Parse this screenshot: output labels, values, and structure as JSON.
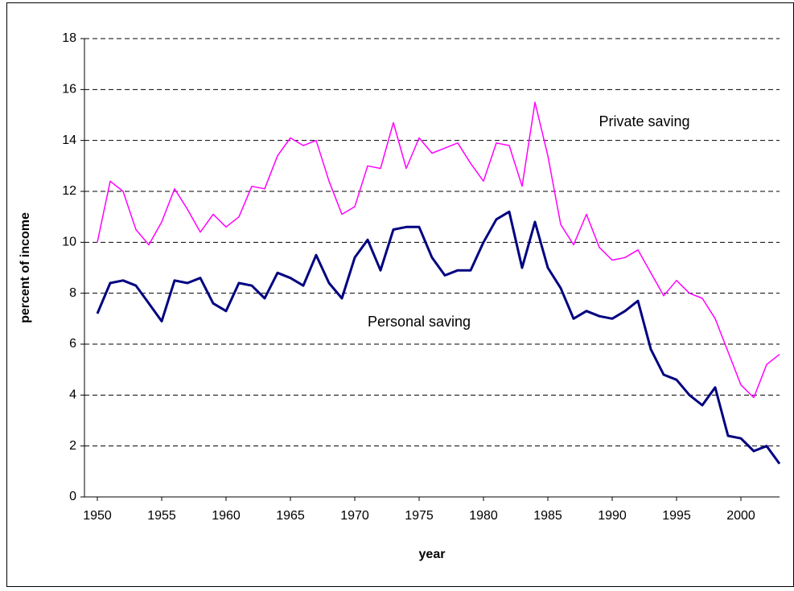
{
  "chart_data": {
    "type": "line",
    "x": [
      1950,
      1951,
      1952,
      1953,
      1954,
      1955,
      1956,
      1957,
      1958,
      1959,
      1960,
      1961,
      1962,
      1963,
      1964,
      1965,
      1966,
      1967,
      1968,
      1969,
      1970,
      1971,
      1972,
      1973,
      1974,
      1975,
      1976,
      1977,
      1978,
      1979,
      1980,
      1981,
      1982,
      1983,
      1984,
      1985,
      1986,
      1987,
      1988,
      1989,
      1990,
      1991,
      1992,
      1993,
      1994,
      1995,
      1996,
      1997,
      1998,
      1999,
      2000,
      2001,
      2002,
      2003
    ],
    "series": [
      {
        "name": "Private saving",
        "color": "#ff00ff",
        "values": [
          10.0,
          12.4,
          12.0,
          10.5,
          9.9,
          10.8,
          12.1,
          11.3,
          10.4,
          11.1,
          10.6,
          11.0,
          12.2,
          12.1,
          13.4,
          14.1,
          13.8,
          14.0,
          12.4,
          11.1,
          11.4,
          13.0,
          12.9,
          14.7,
          12.9,
          14.1,
          13.5,
          13.7,
          13.9,
          13.1,
          12.4,
          13.9,
          13.8,
          12.2,
          15.5,
          13.4,
          10.7,
          9.9,
          11.1,
          9.8,
          9.3,
          9.4,
          9.7,
          8.8,
          7.9,
          8.5,
          8.0,
          7.8,
          7.0,
          5.7,
          4.4,
          3.9,
          5.2,
          5.6
        ]
      },
      {
        "name": "Personal saving",
        "color": "#000080",
        "values": [
          7.2,
          8.4,
          8.5,
          8.3,
          7.6,
          6.9,
          8.5,
          8.4,
          8.6,
          7.6,
          7.3,
          8.4,
          8.3,
          7.8,
          8.8,
          8.6,
          8.3,
          9.5,
          8.4,
          7.8,
          9.4,
          10.1,
          8.9,
          10.5,
          10.6,
          10.6,
          9.4,
          8.7,
          8.9,
          8.9,
          10.0,
          10.9,
          11.2,
          9.0,
          10.8,
          9.0,
          8.2,
          7.0,
          7.3,
          7.1,
          7.0,
          7.3,
          7.7,
          5.8,
          4.8,
          4.6,
          4.0,
          3.6,
          4.3,
          2.4,
          2.3,
          1.8,
          2.0,
          1.3
        ]
      }
    ],
    "x_label": "year",
    "y_label": "percent of income",
    "xlim": [
      1949,
      2003
    ],
    "xticks": [
      1950,
      1955,
      1960,
      1965,
      1970,
      1975,
      1980,
      1985,
      1990,
      1995,
      2000
    ],
    "ylim": [
      0,
      18
    ],
    "yticks": [
      0,
      2,
      4,
      6,
      8,
      10,
      12,
      14,
      16,
      18
    ],
    "grid": true
  }
}
